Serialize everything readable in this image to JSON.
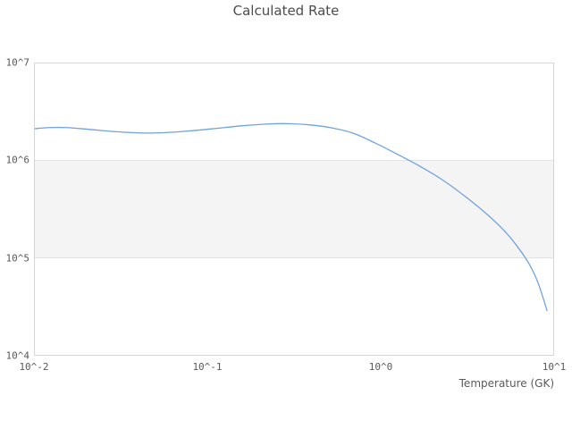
{
  "title": "Calculated Rate",
  "xaxis": {
    "title": "Temperature (GK)",
    "scale": "log",
    "log_range": [
      -2,
      1
    ],
    "ticks": [
      {
        "value": 0.01,
        "label": "10^-2"
      },
      {
        "value": 0.1,
        "label": "10^-1"
      },
      {
        "value": 1,
        "label": "10^0"
      },
      {
        "value": 10,
        "label": "10^1"
      }
    ]
  },
  "yaxis": {
    "title": "",
    "scale": "log",
    "log_range": [
      4,
      7
    ],
    "ticks": [
      {
        "value": 10000000,
        "label": "10^7"
      },
      {
        "value": 1000000,
        "label": "10^6"
      },
      {
        "value": 100000,
        "label": "10^5"
      },
      {
        "value": 10000,
        "label": "10^4"
      }
    ]
  },
  "band": {
    "from": 100000,
    "to": 1000000
  },
  "colors": {
    "line": "#6ea3dd",
    "band": "#f4f4f4",
    "gridline": "#e2e2e2",
    "frame": "#d6d6d6",
    "title_text": "#4d4d4d",
    "tick_text": "#595959",
    "background": "#ffffff"
  },
  "chart_data": {
    "type": "line",
    "title": "Calculated Rate",
    "xlabel": "Temperature (GK)",
    "ylabel": "",
    "xscale": "log",
    "yscale": "log",
    "xlim": [
      0.01,
      10
    ],
    "ylim": [
      10000,
      10000000
    ],
    "grid": "horizontal-decades-only",
    "legend": "none",
    "shaded_band_y": [
      100000,
      1000000
    ],
    "series": [
      {
        "name": "calculated-rate",
        "color": "#6ea3dd",
        "x": [
          0.01,
          0.0122,
          0.0155,
          0.0209,
          0.0299,
          0.0426,
          0.0573,
          0.0772,
          0.11,
          0.157,
          0.224,
          0.285,
          0.382,
          0.518,
          0.695,
          0.93,
          1.25,
          1.68,
          2.27,
          3.05,
          4.1,
          5.2,
          6.2,
          7.2,
          8.1,
          9.1
        ],
        "y": [
          2100000,
          2160000,
          2160000,
          2070000,
          1960000,
          1900000,
          1920000,
          1990000,
          2110000,
          2250000,
          2350000,
          2370000,
          2310000,
          2150000,
          1890000,
          1500000,
          1150000,
          870000,
          630000,
          430000,
          280000,
          187000,
          128000,
          86000,
          55000,
          29000
        ]
      }
    ]
  }
}
